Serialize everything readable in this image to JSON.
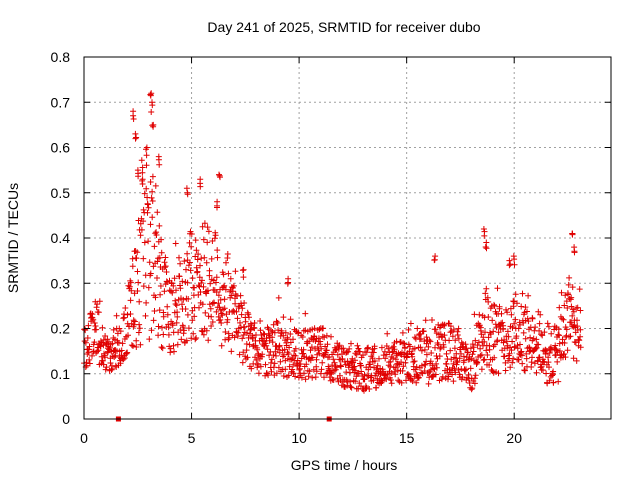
{
  "chart_data": {
    "type": "scatter",
    "title": "Day 241 of 2025, SRMTID for receiver dubo",
    "xlabel": "GPS time / hours",
    "ylabel": "SRMTID / TECUs",
    "xlim": [
      0,
      24.5
    ],
    "ylim": [
      0,
      0.8
    ],
    "x_ticks": [
      0,
      5,
      10,
      15,
      20
    ],
    "y_ticks": [
      0,
      0.1,
      0.2,
      0.3,
      0.4,
      0.5,
      0.6,
      0.7,
      0.8
    ],
    "x_tick_labels": [
      "0",
      "5",
      "10",
      "15",
      "20"
    ],
    "y_tick_labels": [
      "0",
      "0.1",
      "0.2",
      "0.3",
      "0.4",
      "0.5",
      "0.6",
      "0.7",
      "0.8"
    ],
    "grid": true,
    "marker": "+",
    "marker_color": "#e00000",
    "zero_markers_x": [
      1.6,
      11.4
    ],
    "series": [
      {
        "name": "SRMTID",
        "profile": [
          {
            "x": 0.0,
            "base": 0.16,
            "spread": 0.06
          },
          {
            "x": 0.6,
            "base": 0.2,
            "spread": 0.09
          },
          {
            "x": 1.0,
            "base": 0.14,
            "spread": 0.05
          },
          {
            "x": 1.8,
            "base": 0.17,
            "spread": 0.06
          },
          {
            "x": 2.5,
            "base": 0.3,
            "spread": 0.18
          },
          {
            "x": 3.2,
            "base": 0.36,
            "spread": 0.25
          },
          {
            "x": 4.0,
            "base": 0.22,
            "spread": 0.1
          },
          {
            "x": 5.0,
            "base": 0.3,
            "spread": 0.16
          },
          {
            "x": 6.0,
            "base": 0.3,
            "spread": 0.18
          },
          {
            "x": 7.0,
            "base": 0.22,
            "spread": 0.1
          },
          {
            "x": 8.0,
            "base": 0.15,
            "spread": 0.07
          },
          {
            "x": 9.0,
            "base": 0.16,
            "spread": 0.08
          },
          {
            "x": 10.0,
            "base": 0.14,
            "spread": 0.07
          },
          {
            "x": 11.0,
            "base": 0.15,
            "spread": 0.07
          },
          {
            "x": 12.0,
            "base": 0.11,
            "spread": 0.06
          },
          {
            "x": 13.0,
            "base": 0.11,
            "spread": 0.06
          },
          {
            "x": 14.0,
            "base": 0.12,
            "spread": 0.06
          },
          {
            "x": 15.0,
            "base": 0.13,
            "spread": 0.06
          },
          {
            "x": 16.0,
            "base": 0.14,
            "spread": 0.08
          },
          {
            "x": 17.0,
            "base": 0.15,
            "spread": 0.08
          },
          {
            "x": 18.0,
            "base": 0.11,
            "spread": 0.06
          },
          {
            "x": 18.6,
            "base": 0.2,
            "spread": 0.12
          },
          {
            "x": 19.5,
            "base": 0.17,
            "spread": 0.09
          },
          {
            "x": 20.0,
            "base": 0.2,
            "spread": 0.11
          },
          {
            "x": 21.0,
            "base": 0.15,
            "spread": 0.08
          },
          {
            "x": 22.0,
            "base": 0.14,
            "spread": 0.09
          },
          {
            "x": 22.6,
            "base": 0.24,
            "spread": 0.12
          },
          {
            "x": 23.0,
            "base": 0.18,
            "spread": 0.08
          }
        ],
        "peaks": [
          {
            "x": 2.3,
            "y": 0.68
          },
          {
            "x": 2.4,
            "y": 0.63
          },
          {
            "x": 2.5,
            "y": 0.55
          },
          {
            "x": 2.9,
            "y": 0.6
          },
          {
            "x": 3.1,
            "y": 0.72
          },
          {
            "x": 3.15,
            "y": 0.7
          },
          {
            "x": 3.2,
            "y": 0.65
          },
          {
            "x": 3.5,
            "y": 0.58
          },
          {
            "x": 2.7,
            "y": 0.53
          },
          {
            "x": 4.8,
            "y": 0.51
          },
          {
            "x": 5.4,
            "y": 0.53
          },
          {
            "x": 6.3,
            "y": 0.54
          },
          {
            "x": 6.2,
            "y": 0.48
          },
          {
            "x": 7.4,
            "y": 0.33
          },
          {
            "x": 9.5,
            "y": 0.31
          },
          {
            "x": 16.3,
            "y": 0.36
          },
          {
            "x": 18.6,
            "y": 0.42
          },
          {
            "x": 18.7,
            "y": 0.39
          },
          {
            "x": 19.8,
            "y": 0.35
          },
          {
            "x": 20.0,
            "y": 0.36
          },
          {
            "x": 22.7,
            "y": 0.41
          },
          {
            "x": 22.8,
            "y": 0.38
          }
        ],
        "count": 1500,
        "x_end": 23.1
      }
    ]
  }
}
